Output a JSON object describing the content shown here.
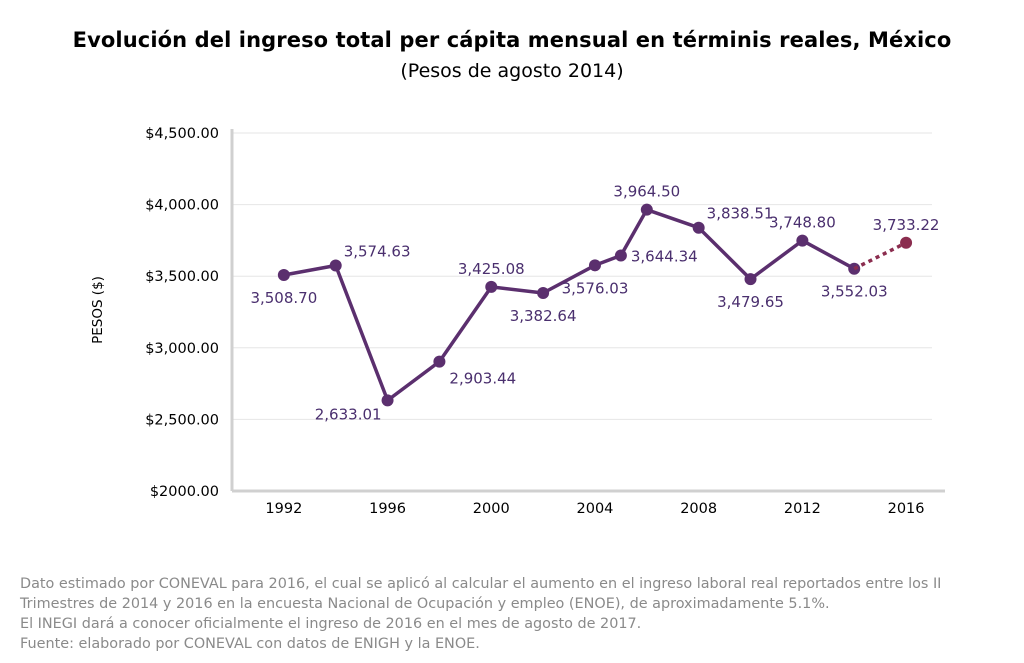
{
  "chart_data": {
    "type": "line",
    "title": "Evolución del ingreso total per cápita mensual en términis reales, México",
    "subtitle": "(Pesos de agosto 2014)",
    "ylabel": "PESOS ($)",
    "xlabel": "",
    "ylim": [
      2000,
      4500
    ],
    "yticks": [
      {
        "value": 4500,
        "label": "$4,500.00"
      },
      {
        "value": 4000,
        "label": "$4,000.00"
      },
      {
        "value": 3500,
        "label": "$3,500.00"
      },
      {
        "value": 3000,
        "label": "$3,000.00"
      },
      {
        "value": 2500,
        "label": "$2,500.00"
      },
      {
        "value": 2000,
        "label": "$2000.00"
      }
    ],
    "xlim": [
      1990,
      2017
    ],
    "xticks": [
      1992,
      1996,
      2000,
      2004,
      2008,
      2012,
      2016
    ],
    "grid": true,
    "series": [
      {
        "x": [
          1992,
          1994,
          1996,
          1998,
          2000,
          2002,
          2004,
          2005,
          2006,
          2008,
          2010,
          2012,
          2014
        ],
        "values": [
          3508.7,
          3574.63,
          2633.01,
          2903.44,
          3425.08,
          3382.64,
          3576.03,
          3644.34,
          3964.5,
          3838.51,
          3479.65,
          3748.8,
          3552.03
        ],
        "labels": [
          "3,508.70",
          "3,574.63",
          "2,633.01",
          "2,903.44",
          "3,425.08",
          "3,382.64",
          "3,576.03",
          "3,644.34",
          "3,964.50",
          "3,838.51",
          "3,479.65",
          "3,748.80",
          "3,552.03"
        ],
        "label_pos": [
          "below",
          "right-above",
          "left-below",
          "right-below",
          "above",
          "below",
          "below",
          "right",
          "above",
          "right-above",
          "below",
          "above",
          "below"
        ],
        "color": "#5b2f6e"
      },
      {
        "x": [
          2014,
          2016
        ],
        "values": [
          3552.03,
          3733.22
        ],
        "labels": [
          "",
          "3,733.22"
        ],
        "label_pos": [
          "",
          "above"
        ],
        "color": "#8b2d4f",
        "style": "dotted"
      }
    ]
  },
  "notes": [
    "Dato estimado por CONEVAL para 2016, el cual se aplicó al calcular el aumento en el ingreso laboral real reportados entre los II",
    "Trimestres de 2014 y 2016 en la encuesta Nacional de Ocupación y empleo (ENOE), de aproximadamente 5.1%.",
    "El INEGI dará a conocer oficialmente el ingreso de 2016 en el mes de agosto de 2017.",
    "Fuente: elaborado por CONEVAL con datos de ENIGH y la ENOE."
  ]
}
